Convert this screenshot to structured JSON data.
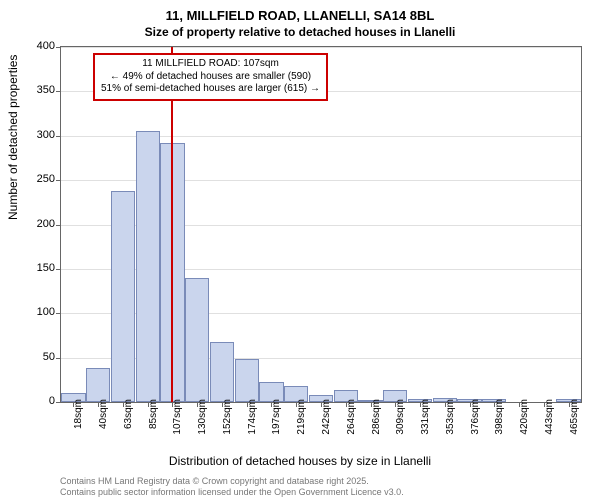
{
  "title": "11, MILLFIELD ROAD, LLANELLI, SA14 8BL",
  "subtitle": "Size of property relative to detached houses in Llanelli",
  "y_axis_label": "Number of detached properties",
  "x_axis_label": "Distribution of detached houses by size in Llanelli",
  "annotation": {
    "line1": "11 MILLFIELD ROAD: 107sqm",
    "line2": "← 49% of detached houses are smaller (590)",
    "line3": "51% of semi-detached houses are larger (615) →"
  },
  "footer": {
    "line1": "Contains HM Land Registry data © Crown copyright and database right 2025.",
    "line2": "Contains public sector information licensed under the Open Government Licence v3.0."
  },
  "chart": {
    "type": "histogram",
    "background_color": "#ffffff",
    "bar_fill": "#cad5ed",
    "bar_border": "#7a8bb8",
    "ref_line_color": "#cc0000",
    "grid_color": "#e0e0e0",
    "axis_color": "#666666",
    "ylim": [
      0,
      400
    ],
    "ytick_step": 50,
    "yticks": [
      0,
      50,
      100,
      150,
      200,
      250,
      300,
      350,
      400
    ],
    "x_labels": [
      "18sqm",
      "40sqm",
      "63sqm",
      "85sqm",
      "107sqm",
      "130sqm",
      "152sqm",
      "174sqm",
      "197sqm",
      "219sqm",
      "242sqm",
      "264sqm",
      "286sqm",
      "309sqm",
      "331sqm",
      "353sqm",
      "376sqm",
      "398sqm",
      "420sqm",
      "443sqm",
      "465sqm"
    ],
    "values": [
      10,
      38,
      238,
      305,
      292,
      140,
      68,
      48,
      22,
      18,
      8,
      14,
      2,
      14,
      3,
      5,
      3,
      3,
      0,
      0,
      3
    ],
    "ref_line_index": 4,
    "title_fontsize": 13,
    "label_fontsize": 12,
    "tick_fontsize": 11
  }
}
